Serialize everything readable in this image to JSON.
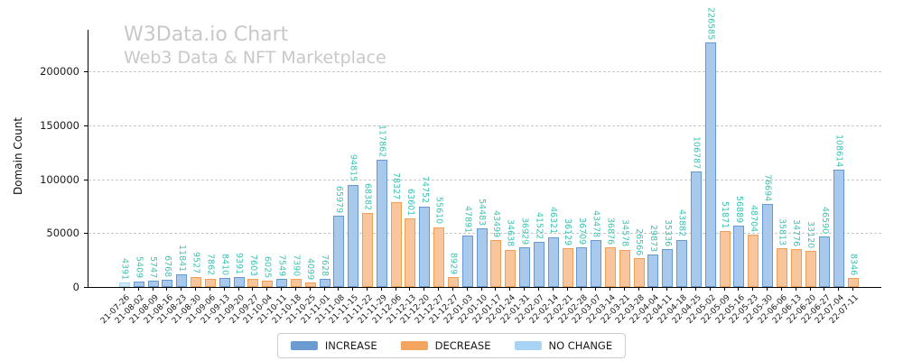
{
  "chart_data": {
    "type": "bar",
    "title": "W3Data.io Chart",
    "subtitle": "Web3 Data & NFT Marketplace",
    "ylabel": "Domain Count",
    "xlabel": "",
    "ylim": [
      0,
      238500
    ],
    "yticks": [
      0,
      50000,
      100000,
      150000,
      200000
    ],
    "grid": "horizontal-dashed",
    "legend_position": "bottom-center",
    "title_color": "#c8c8c8",
    "value_label_color": "#3fc4b4",
    "legend": [
      {
        "label": "INCREASE",
        "key": "increase",
        "color": "#6b9bd0"
      },
      {
        "label": "DECREASE",
        "key": "decrease",
        "color": "#f3a45e"
      },
      {
        "label": "NO CHANGE",
        "key": "no_change",
        "color": "#a9d3f5"
      }
    ],
    "bar_styles": {
      "increase": {
        "fill": "#a8c9ec",
        "edge": "#6699d2"
      },
      "decrease": {
        "fill": "#f9c59c",
        "edge": "#f09f58"
      },
      "no_change": {
        "fill": "#d2e7fa",
        "edge": "#a9d5f6"
      }
    },
    "bars": [
      {
        "date": "21-07-26",
        "value": 4391,
        "change": "no_change"
      },
      {
        "date": "21-08-02",
        "value": 5409,
        "change": "increase"
      },
      {
        "date": "21-08-09",
        "value": 5747,
        "change": "increase"
      },
      {
        "date": "21-08-16",
        "value": 6768,
        "change": "increase"
      },
      {
        "date": "21-08-23",
        "value": 11841,
        "change": "increase"
      },
      {
        "date": "21-08-30",
        "value": 9527,
        "change": "decrease"
      },
      {
        "date": "21-09-06",
        "value": 7862,
        "change": "decrease"
      },
      {
        "date": "21-09-13",
        "value": 8410,
        "change": "increase"
      },
      {
        "date": "21-09-20",
        "value": 9391,
        "change": "increase"
      },
      {
        "date": "21-09-27",
        "value": 7603,
        "change": "decrease"
      },
      {
        "date": "21-10-04",
        "value": 6025,
        "change": "decrease"
      },
      {
        "date": "21-10-11",
        "value": 7549,
        "change": "increase"
      },
      {
        "date": "21-10-18",
        "value": 7390,
        "change": "decrease"
      },
      {
        "date": "21-10-25",
        "value": 4099,
        "change": "decrease"
      },
      {
        "date": "21-11-01",
        "value": 7628,
        "change": "increase"
      },
      {
        "date": "21-11-08",
        "value": 65979,
        "change": "increase"
      },
      {
        "date": "21-11-15",
        "value": 94815,
        "change": "increase"
      },
      {
        "date": "21-11-22",
        "value": 68382,
        "change": "decrease"
      },
      {
        "date": "21-11-29",
        "value": 117862,
        "change": "increase"
      },
      {
        "date": "21-12-06",
        "value": 78327,
        "change": "decrease"
      },
      {
        "date": "21-12-13",
        "value": 63601,
        "change": "decrease"
      },
      {
        "date": "21-12-20",
        "value": 74752,
        "change": "increase"
      },
      {
        "date": "21-12-27",
        "value": 55610,
        "change": "decrease"
      },
      {
        "date": "21-12-27",
        "value": 8929,
        "change": "decrease"
      },
      {
        "date": "22-01-03",
        "value": 47891,
        "change": "increase"
      },
      {
        "date": "22-01-10",
        "value": 54483,
        "change": "increase"
      },
      {
        "date": "22-01-17",
        "value": 43499,
        "change": "decrease"
      },
      {
        "date": "22-01-24",
        "value": 34638,
        "change": "decrease"
      },
      {
        "date": "22-01-31",
        "value": 36929,
        "change": "increase"
      },
      {
        "date": "22-02-07",
        "value": 41522,
        "change": "increase"
      },
      {
        "date": "22-02-14",
        "value": 46321,
        "change": "increase"
      },
      {
        "date": "22-02-21",
        "value": 36129,
        "change": "decrease"
      },
      {
        "date": "22-02-28",
        "value": 36709,
        "change": "increase"
      },
      {
        "date": "22-03-07",
        "value": 43478,
        "change": "increase"
      },
      {
        "date": "22-03-14",
        "value": 36876,
        "change": "decrease"
      },
      {
        "date": "22-03-21",
        "value": 34578,
        "change": "decrease"
      },
      {
        "date": "22-03-28",
        "value": 26566,
        "change": "decrease"
      },
      {
        "date": "22-04-04",
        "value": 29873,
        "change": "increase"
      },
      {
        "date": "22-04-11",
        "value": 35336,
        "change": "increase"
      },
      {
        "date": "22-04-18",
        "value": 43882,
        "change": "increase"
      },
      {
        "date": "22-04-25",
        "value": 106787,
        "change": "increase"
      },
      {
        "date": "22-05-02",
        "value": 226585,
        "change": "increase"
      },
      {
        "date": "22-05-09",
        "value": 51871,
        "change": "decrease"
      },
      {
        "date": "22-05-16",
        "value": 56889,
        "change": "increase"
      },
      {
        "date": "22-05-23",
        "value": 48704,
        "change": "decrease"
      },
      {
        "date": "22-05-30",
        "value": 76694,
        "change": "increase"
      },
      {
        "date": "22-06-06",
        "value": 35813,
        "change": "decrease"
      },
      {
        "date": "22-06-13",
        "value": 34776,
        "change": "decrease"
      },
      {
        "date": "22-06-20",
        "value": 33120,
        "change": "decrease"
      },
      {
        "date": "22-06-27",
        "value": 46590,
        "change": "increase"
      },
      {
        "date": "22-07-04",
        "value": 108614,
        "change": "increase"
      },
      {
        "date": "22-07-11",
        "value": 8346,
        "change": "decrease"
      }
    ]
  }
}
